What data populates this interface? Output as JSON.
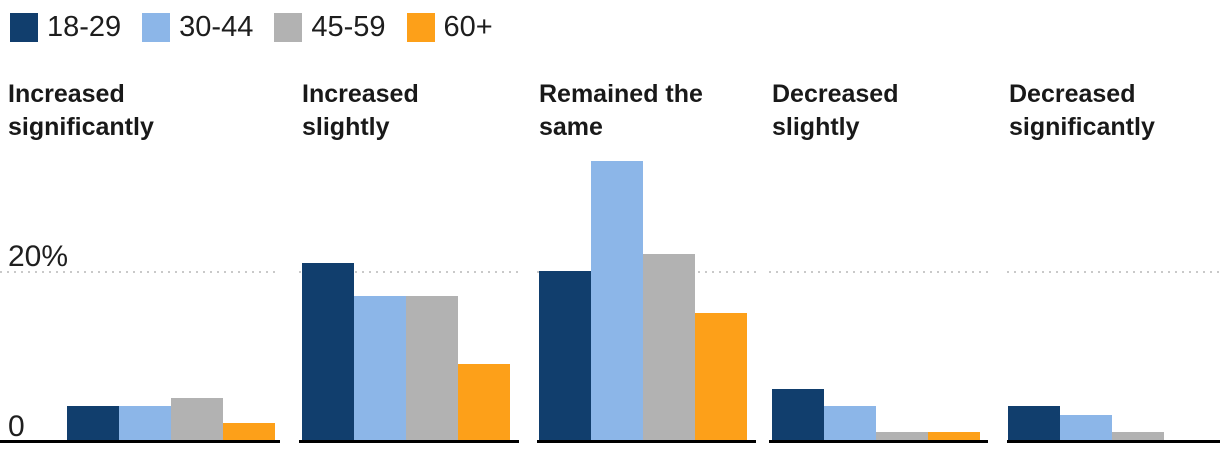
{
  "legend": {
    "items": [
      {
        "label": "18-29",
        "color": "#113e6d"
      },
      {
        "label": "30-44",
        "color": "#8cb6e8"
      },
      {
        "label": "45-59",
        "color": "#b2b2b2"
      },
      {
        "label": "60+",
        "color": "#fda019"
      }
    ]
  },
  "axis_labels": {
    "top_tick": "20%",
    "zero_tick": "0"
  },
  "chart_data": {
    "type": "bar",
    "unit": "percent",
    "categories": [
      "Increased significantly",
      "Increased slightly",
      "Remained the same",
      "Decreased slightly",
      "Decreased significantly"
    ],
    "series": [
      {
        "name": "18-29",
        "color": "#113e6d",
        "values": [
          4,
          21,
          20,
          6,
          4
        ]
      },
      {
        "name": "30-44",
        "color": "#8cb6e8",
        "values": [
          4,
          17,
          33,
          4,
          3
        ]
      },
      {
        "name": "45-59",
        "color": "#b2b2b2",
        "values": [
          5,
          17,
          22,
          1,
          1
        ]
      },
      {
        "name": "60+",
        "color": "#fda019",
        "values": [
          2,
          9,
          15,
          1,
          0
        ]
      }
    ],
    "ylim": [
      0,
      34
    ],
    "gridlines": [
      20
    ],
    "gridline_style": "dotted",
    "grid": true,
    "legend_position": "top-left",
    "title": "",
    "xlabel": "",
    "ylabel": ""
  }
}
